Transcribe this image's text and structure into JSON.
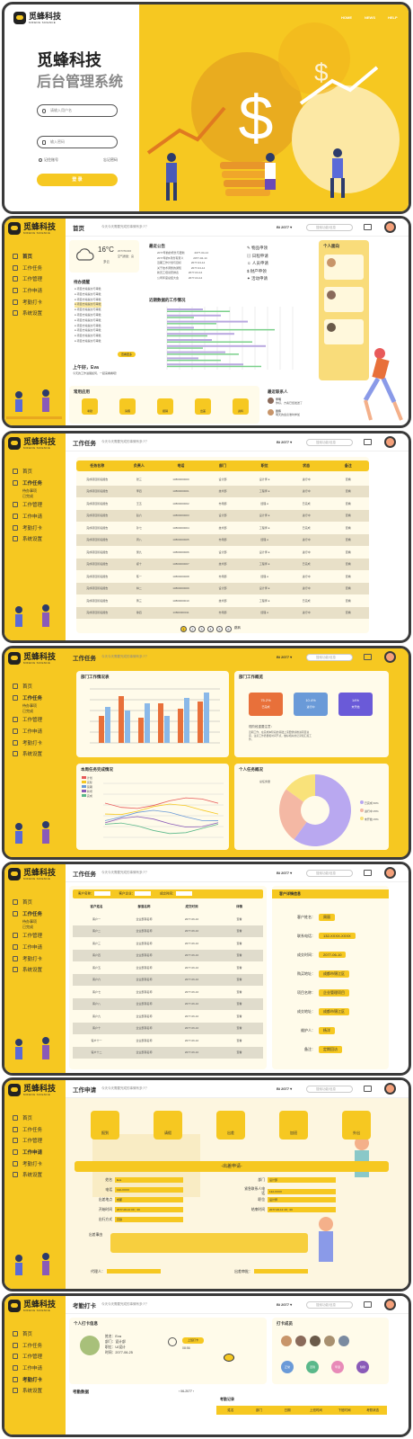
{
  "login": {
    "nav": [
      "HOME",
      "NEWS",
      "HELP"
    ],
    "brand": "觅蜂科技",
    "system": "后台管理系统",
    "user_placeholder": "请输入用户名",
    "pass_placeholder": "输入密码",
    "remember": "记住账号",
    "forgot": "忘记密码",
    "submit": "登 录"
  },
  "brand": {
    "name": "觅蜂科技",
    "en": "MIFENG SCIENCE"
  },
  "topbar": {
    "user": "Bi 2077 ▾",
    "search": "搜索功能/信息"
  },
  "dashboard": {
    "title": "首页",
    "subtitle": "今天今天需要完成的事情有多少？",
    "nav": [
      "首页",
      "工作任务",
      "工作管理",
      "工作申请",
      "考勤打卡",
      "系统设置"
    ],
    "weather": {
      "temp": "16°C",
      "cond": "多云",
      "date": "2077/04/16",
      "detail": "空气质量：良"
    },
    "notice_title": "最近公告",
    "notices": [
      "2077年前的增长与更新",
      "2077年的5月份有意义",
      "近期工作计划与目标",
      "关于技术调整的通知",
      "新员工培训安排表",
      "公司年度总结大会"
    ],
    "notice_date": "2077-04-14",
    "shortcuts": [
      "物品申领",
      "日程申请",
      "人员申请",
      "财产申领",
      "活动申请"
    ],
    "profile_title": "个人面向",
    "todo_title": "待办提醒",
    "todo_item": "项目方案提交与审批",
    "todo_date": "2077-04-16",
    "todo_more": "查看更多",
    "chart_title": "近期数据的工作情况",
    "greeting": "上午好，Eva",
    "greeting_sub": "今天的工作进展如何，一起来看看吧！",
    "common_title": "常用应用",
    "apps": [
      "考勤",
      "请假",
      "报销",
      "出差",
      "资料"
    ],
    "contacts_title": "最近联系人",
    "contacts": [
      {
        "name": "李明",
        "msg": "你好，方案已经发送了"
      },
      {
        "name": "张伟",
        "msg": "明天的会议准时参加"
      }
    ]
  },
  "task": {
    "title": "工作任务",
    "subtitle": "今天今天需要完成的事情有多少？",
    "nav": [
      "首页",
      "工作任务",
      "工作管理",
      "工作申请",
      "考勤打卡",
      "系统设置"
    ],
    "subnav": [
      "待办事项",
      "已完成"
    ],
    "headers": [
      "任务名称",
      "负责人",
      "电话",
      "部门",
      "职位",
      "状态",
      "备注"
    ],
    "rows": [
      [
        "完成项目阶段报告",
        "张三",
        "13800000000",
        "设计部",
        "设计师 ●",
        "进行中",
        "查看"
      ],
      [
        "完成项目阶段报告",
        "李四",
        "13800000001",
        "技术部",
        "工程师 ●",
        "进行中",
        "查看"
      ],
      [
        "完成项目阶段报告",
        "王五",
        "13800000002",
        "市场部",
        "经理 ●",
        "已完成",
        "查看"
      ],
      [
        "完成项目阶段报告",
        "赵六",
        "13800000003",
        "设计部",
        "设计师 ●",
        "进行中",
        "查看"
      ],
      [
        "完成项目阶段报告",
        "孙七",
        "13800000004",
        "技术部",
        "工程师 ●",
        "已完成",
        "查看"
      ],
      [
        "完成项目阶段报告",
        "周八",
        "13800000005",
        "市场部",
        "经理 ●",
        "进行中",
        "查看"
      ],
      [
        "完成项目阶段报告",
        "吴九",
        "13800000006",
        "设计部",
        "设计师 ●",
        "进行中",
        "查看"
      ],
      [
        "完成项目阶段报告",
        "郑十",
        "13800000007",
        "技术部",
        "工程师 ●",
        "已完成",
        "查看"
      ],
      [
        "完成项目阶段报告",
        "陈一",
        "13800000008",
        "市场部",
        "经理 ●",
        "进行中",
        "查看"
      ],
      [
        "完成项目阶段报告",
        "林二",
        "13800000009",
        "设计部",
        "设计师 ●",
        "进行中",
        "查看"
      ],
      [
        "完成项目阶段报告",
        "黄三",
        "13800000010",
        "技术部",
        "工程师 ●",
        "已完成",
        "查看"
      ],
      [
        "完成项目阶段报告",
        "徐四",
        "13800000011",
        "市场部",
        "经理 ●",
        "进行中",
        "查看"
      ]
    ],
    "pages": [
      "1",
      "2",
      "3",
      "4",
      "5",
      "6"
    ],
    "jump": "跳转"
  },
  "stats": {
    "title": "工作任务",
    "dept_chart": "部门工作情况表",
    "summary_title": "部门工作概览",
    "kpis": [
      {
        "v": "75.2%",
        "l": "已完成"
      },
      {
        "v": "10.4%",
        "l": "进行中"
      },
      {
        "v": "14%",
        "l": "未开始"
      }
    ],
    "notes_title": "现阶段重要注意：",
    "notes": "近期工作，在完成本阶段的基础上需要继续推进项目进度，注意工作质量和时间节点，做好相关的记录和汇报工作。",
    "line_title": "本周任务完成情况",
    "legend": [
      "计划",
      "实际",
      "延期",
      "新增",
      "完成"
    ],
    "pie_title": "个人任务概况",
    "pie_legend": [
      {
        "l": "已完成 60%",
        "c": "#b9a8f0"
      },
      {
        "l": "进行中 25%",
        "c": "#f4b8a4"
      },
      {
        "l": "未开始 15%",
        "c": "#f9e27a"
      }
    ],
    "pie_label": "总任务量"
  },
  "customer": {
    "title": "工作任务",
    "filters": [
      "客户名称：",
      "客户企业：",
      "成交时间："
    ],
    "headers": [
      "客户姓名",
      "部落名称",
      "成交时间",
      "详情"
    ],
    "rows": [
      [
        "客户一",
        "企业部落名称",
        "2077-06-10",
        "查看"
      ],
      [
        "客户二",
        "企业部落名称",
        "2077-06-10",
        "查看"
      ],
      [
        "客户三",
        "企业部落名称",
        "2077-06-10",
        "查看"
      ],
      [
        "客户四",
        "企业部落名称",
        "2077-06-10",
        "查看"
      ],
      [
        "客户五",
        "企业部落名称",
        "2077-06-10",
        "查看"
      ],
      [
        "客户六",
        "企业部落名称",
        "2077-06-10",
        "查看"
      ],
      [
        "客户七",
        "企业部落名称",
        "2077-06-10",
        "查看"
      ],
      [
        "客户八",
        "企业部落名称",
        "2077-06-10",
        "查看"
      ],
      [
        "客户九",
        "企业部落名称",
        "2077-06-10",
        "查看"
      ],
      [
        "客户十",
        "企业部落名称",
        "2077-06-10",
        "查看"
      ],
      [
        "客户十一",
        "企业部落名称",
        "2077-06-10",
        "查看"
      ],
      [
        "客户十二",
        "企业部落名称",
        "2077-06-10",
        "查看"
      ]
    ],
    "detail_title": "客户详情信息",
    "fields": [
      {
        "k": "客户姓名：",
        "v": "周丽"
      },
      {
        "k": "联系电话：",
        "v": "132-XXXX-XXXX"
      },
      {
        "k": "成交时间：",
        "v": "2077-06-10"
      },
      {
        "k": "购买地址：",
        "v": "成都市锦江区"
      },
      {
        "k": "项目名称：",
        "v": "企业管理项目"
      },
      {
        "k": "成交地址：",
        "v": "成都市锦江区"
      },
      {
        "k": "维护人：",
        "v": "杨洋"
      },
      {
        "k": "备注：",
        "v": "定期回访"
      }
    ]
  },
  "apply": {
    "title": "工作申请",
    "tiles": [
      "报到",
      "请假",
      "出差",
      "加班",
      "外出"
    ],
    "form_title": "-出差申请-",
    "fields": [
      {
        "k": "姓名",
        "v": "Eva"
      },
      {
        "k": "部门",
        "v": "设计部"
      },
      {
        "k": "电话",
        "v": "132-XXXX"
      },
      {
        "k": "紧急联系人电话",
        "v": "132-XXXX"
      },
      {
        "k": "出差地点",
        "v": "成都"
      },
      {
        "k": "职位",
        "v": "设计师"
      },
      {
        "k": "开始时间",
        "v": "2077-06-10 09：00"
      },
      {
        "k": "结束时间",
        "v": "2077-06-12 18：00"
      },
      {
        "k": "出行方式",
        "v": "高铁"
      },
      {
        "k": "出差事由",
        "v": ""
      }
    ],
    "agent": "代理人：",
    "approver": "出差审批："
  },
  "attendance": {
    "title": "考勤打卡",
    "info_title": "个人打卡信息",
    "name": "Eva",
    "dept": "设计部",
    "pos": "UI设计",
    "date": "2077-06-25",
    "labels": [
      "姓名：",
      "部门：",
      "职位：",
      "时间："
    ],
    "clock": "上班打卡",
    "clock_time": "08:56",
    "record_title": "打卡成员",
    "headers": [
      "姓名",
      "部门",
      "日期",
      "上班时间",
      "下班时间",
      "考勤状态"
    ],
    "record_label": "考勤记录",
    "month": "06-2077",
    "stats_title": "考勤数据",
    "circles": [
      "正常",
      "迟到",
      "早退",
      "缺勤"
    ]
  }
}
